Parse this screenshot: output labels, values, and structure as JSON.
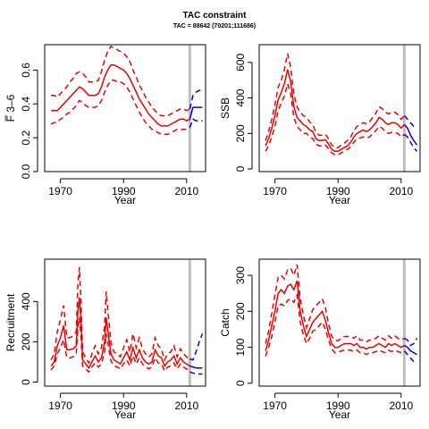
{
  "title": "TAC constraint",
  "subtitle": "TAC = 88642 (70201;111686)",
  "colors": {
    "history": "#ee0000",
    "projection": "#0000ee",
    "marker": "#bebebe"
  },
  "chart_data": [
    {
      "type": "line",
      "panel": "F",
      "ylabel": "F̅ 3–6",
      "xlabel": "Year",
      "xlim": [
        1965,
        2016
      ],
      "ylim": [
        0,
        0.75
      ],
      "yticks": [
        0,
        0.2,
        0.4,
        0.6
      ],
      "ytick_labels": [
        "0.0",
        "0.2",
        "0.4",
        "0.6"
      ],
      "xticks": [
        1970,
        1990,
        2010
      ],
      "marker_x": 2011,
      "history": {
        "x": [
          1967,
          1968,
          1969,
          1970,
          1971,
          1972,
          1973,
          1974,
          1975,
          1976,
          1977,
          1978,
          1979,
          1980,
          1981,
          1982,
          1983,
          1984,
          1985,
          1986,
          1987,
          1988,
          1989,
          1990,
          1991,
          1992,
          1993,
          1994,
          1995,
          1996,
          1997,
          1998,
          1999,
          2000,
          2001,
          2002,
          2003,
          2004,
          2005,
          2006,
          2007,
          2008,
          2009,
          2010,
          2011
        ],
        "mid": [
          0.36,
          0.36,
          0.36,
          0.38,
          0.4,
          0.42,
          0.44,
          0.46,
          0.48,
          0.5,
          0.49,
          0.47,
          0.45,
          0.45,
          0.45,
          0.46,
          0.5,
          0.56,
          0.6,
          0.63,
          0.63,
          0.62,
          0.61,
          0.6,
          0.58,
          0.55,
          0.51,
          0.47,
          0.43,
          0.4,
          0.37,
          0.34,
          0.32,
          0.3,
          0.28,
          0.27,
          0.27,
          0.27,
          0.28,
          0.29,
          0.3,
          0.31,
          0.31,
          0.3,
          0.31
        ],
        "lo": [
          0.28,
          0.29,
          0.29,
          0.31,
          0.32,
          0.34,
          0.35,
          0.37,
          0.39,
          0.42,
          0.41,
          0.39,
          0.38,
          0.38,
          0.38,
          0.39,
          0.42,
          0.47,
          0.51,
          0.54,
          0.54,
          0.53,
          0.53,
          0.52,
          0.5,
          0.47,
          0.43,
          0.39,
          0.35,
          0.32,
          0.29,
          0.27,
          0.25,
          0.24,
          0.23,
          0.22,
          0.22,
          0.22,
          0.23,
          0.24,
          0.25,
          0.25,
          0.25,
          0.25,
          0.26
        ],
        "hi": [
          0.45,
          0.45,
          0.44,
          0.46,
          0.48,
          0.5,
          0.53,
          0.55,
          0.58,
          0.59,
          0.58,
          0.56,
          0.53,
          0.53,
          0.53,
          0.54,
          0.59,
          0.66,
          0.71,
          0.74,
          0.73,
          0.72,
          0.71,
          0.7,
          0.68,
          0.65,
          0.6,
          0.56,
          0.51,
          0.48,
          0.44,
          0.41,
          0.38,
          0.36,
          0.34,
          0.33,
          0.33,
          0.33,
          0.34,
          0.35,
          0.36,
          0.37,
          0.37,
          0.36,
          0.37
        ]
      },
      "projection": {
        "x": [
          2011,
          2012,
          2013,
          2014,
          2015
        ],
        "mid": [
          0.31,
          0.38,
          0.38,
          0.38,
          0.38
        ],
        "lo": [
          0.26,
          0.31,
          0.3,
          0.3,
          0.3
        ],
        "hi": [
          0.37,
          0.45,
          0.47,
          0.48,
          0.48
        ]
      }
    },
    {
      "type": "line",
      "panel": "SSB",
      "ylabel": "SSB",
      "xlabel": "Year",
      "xlim": [
        1965,
        2016
      ],
      "ylim": [
        -15,
        700
      ],
      "yticks": [
        0,
        200,
        400,
        600
      ],
      "ytick_labels": [
        "0",
        "200",
        "400",
        "600"
      ],
      "xticks": [
        1970,
        1990,
        2010
      ],
      "marker_x": 2011,
      "history": {
        "x": [
          1967,
          1968,
          1969,
          1970,
          1971,
          1972,
          1973,
          1974,
          1975,
          1976,
          1977,
          1978,
          1979,
          1980,
          1981,
          1982,
          1983,
          1984,
          1985,
          1986,
          1987,
          1988,
          1989,
          1990,
          1991,
          1992,
          1993,
          1994,
          1995,
          1996,
          1997,
          1998,
          1999,
          2000,
          2001,
          2002,
          2003,
          2004,
          2005,
          2006,
          2007,
          2008,
          2009,
          2010,
          2011
        ],
        "mid": [
          130,
          170,
          230,
          300,
          390,
          430,
          480,
          560,
          490,
          350,
          290,
          270,
          250,
          240,
          220,
          210,
          170,
          160,
          160,
          165,
          140,
          110,
          100,
          100,
          110,
          120,
          130,
          150,
          180,
          200,
          210,
          220,
          210,
          220,
          240,
          260,
          290,
          280,
          260,
          250,
          260,
          260,
          250,
          230,
          250
        ],
        "lo": [
          100,
          130,
          180,
          240,
          330,
          370,
          410,
          480,
          420,
          290,
          240,
          220,
          200,
          200,
          180,
          170,
          140,
          130,
          130,
          135,
          115,
          90,
          80,
          80,
          90,
          100,
          110,
          125,
          150,
          170,
          175,
          180,
          175,
          180,
          200,
          215,
          240,
          230,
          210,
          200,
          205,
          205,
          200,
          180,
          195
        ],
        "hi": [
          160,
          210,
          280,
          360,
          460,
          500,
          560,
          650,
          570,
          420,
          350,
          320,
          300,
          290,
          265,
          250,
          205,
          190,
          190,
          195,
          170,
          135,
          120,
          120,
          135,
          145,
          160,
          180,
          215,
          240,
          250,
          260,
          255,
          265,
          290,
          315,
          350,
          340,
          320,
          310,
          320,
          320,
          305,
          280,
          300
        ]
      },
      "projection": {
        "x": [
          2011,
          2012,
          2013,
          2014,
          2015
        ],
        "mid": [
          250,
          230,
          190,
          160,
          135
        ],
        "lo": [
          195,
          180,
          150,
          120,
          100
        ],
        "hi": [
          300,
          280,
          260,
          240,
          235
        ]
      }
    },
    {
      "type": "line",
      "panel": "Recruitment",
      "ylabel": "Recruitment",
      "xlabel": "Year",
      "xlim": [
        1965,
        2016
      ],
      "ylim": [
        -20,
        610
      ],
      "yticks": [
        0,
        200,
        400
      ],
      "ytick_labels": [
        "0",
        "200",
        "400"
      ],
      "xticks": [
        1970,
        1990,
        2010
      ],
      "marker_x": 2011,
      "history": {
        "x": [
          1967,
          1968,
          1969,
          1970,
          1971,
          1972,
          1973,
          1974,
          1975,
          1975.5,
          1976,
          1976.5,
          1977,
          1978,
          1979,
          1980,
          1981,
          1982,
          1983,
          1984,
          1984.5,
          1985,
          1985.5,
          1986,
          1987,
          1988,
          1989,
          1990,
          1991,
          1992,
          1993,
          1994,
          1995,
          1996,
          1997,
          1998,
          1999,
          2000,
          2001,
          2002,
          2003,
          2004,
          2005,
          2006,
          2007,
          2008,
          2009,
          2010,
          2011
        ],
        "mid": [
          80,
          100,
          180,
          220,
          280,
          160,
          160,
          165,
          180,
          350,
          420,
          300,
          110,
          90,
          70,
          100,
          130,
          100,
          120,
          200,
          320,
          260,
          200,
          140,
          110,
          100,
          90,
          120,
          150,
          110,
          170,
          120,
          160,
          120,
          100,
          90,
          100,
          160,
          130,
          120,
          80,
          100,
          110,
          130,
          90,
          120,
          100,
          90,
          80
        ],
        "lo": [
          60,
          80,
          140,
          170,
          210,
          120,
          120,
          125,
          140,
          260,
          320,
          230,
          80,
          65,
          50,
          75,
          95,
          75,
          90,
          150,
          240,
          200,
          150,
          105,
          80,
          75,
          65,
          90,
          110,
          80,
          130,
          90,
          120,
          90,
          75,
          65,
          75,
          120,
          95,
          90,
          55,
          75,
          80,
          95,
          65,
          90,
          75,
          65,
          60
        ],
        "hi": [
          110,
          140,
          250,
          310,
          380,
          220,
          220,
          230,
          250,
          480,
          570,
          400,
          150,
          120,
          95,
          140,
          180,
          140,
          170,
          280,
          450,
          360,
          280,
          195,
          150,
          140,
          125,
          170,
          210,
          150,
          240,
          170,
          220,
          165,
          140,
          125,
          140,
          220,
          180,
          165,
          110,
          140,
          150,
          180,
          125,
          165,
          140,
          125,
          110
        ]
      },
      "projection": {
        "x": [
          2011,
          2012,
          2013,
          2014,
          2015
        ],
        "mid": [
          80,
          75,
          70,
          70,
          70
        ],
        "lo": [
          50,
          45,
          40,
          40,
          40
        ],
        "hi": [
          115,
          110,
          150,
          200,
          240
        ]
      }
    },
    {
      "type": "line",
      "panel": "Catch",
      "ylabel": "Catch",
      "xlabel": "Year",
      "xlim": [
        1965,
        2016
      ],
      "ylim": [
        -8,
        345
      ],
      "yticks": [
        0,
        100,
        200,
        300
      ],
      "ytick_labels": [
        "0",
        "100",
        "200",
        "300"
      ],
      "xticks": [
        1970,
        1990,
        2010
      ],
      "marker_x": 2011,
      "history": {
        "x": [
          1967,
          1968,
          1969,
          1970,
          1971,
          1972,
          1973,
          1974,
          1975,
          1976,
          1977,
          1978,
          1979,
          1980,
          1981,
          1982,
          1983,
          1984,
          1985,
          1986,
          1987,
          1988,
          1989,
          1990,
          1991,
          1992,
          1993,
          1994,
          1995,
          1996,
          1997,
          1998,
          1999,
          2000,
          2001,
          2002,
          2003,
          2004,
          2005,
          2006,
          2007,
          2008,
          2009,
          2010,
          2011
        ],
        "mid": [
          90,
          120,
          160,
          200,
          250,
          260,
          250,
          270,
          275,
          260,
          285,
          200,
          160,
          130,
          150,
          170,
          180,
          190,
          200,
          175,
          140,
          110,
          100,
          100,
          105,
          110,
          110,
          110,
          105,
          110,
          100,
          100,
          95,
          100,
          100,
          105,
          110,
          105,
          100,
          110,
          105,
          110,
          105,
          100,
          105
        ],
        "lo": [
          75,
          100,
          130,
          170,
          215,
          220,
          215,
          230,
          235,
          225,
          245,
          170,
          135,
          110,
          125,
          145,
          150,
          160,
          170,
          150,
          120,
          95,
          85,
          85,
          90,
          92,
          92,
          92,
          88,
          92,
          85,
          85,
          80,
          85,
          85,
          88,
          92,
          88,
          85,
          92,
          88,
          92,
          88,
          85,
          90
        ],
        "hi": [
          110,
          145,
          195,
          245,
          295,
          300,
          290,
          315,
          320,
          300,
          330,
          235,
          190,
          155,
          180,
          205,
          215,
          225,
          235,
          210,
          165,
          130,
          120,
          118,
          125,
          130,
          130,
          130,
          125,
          132,
          120,
          120,
          115,
          120,
          120,
          125,
          132,
          125,
          120,
          132,
          125,
          132,
          125,
          120,
          125
        ]
      },
      "projection": {
        "x": [
          2011,
          2012,
          2013,
          2014,
          2015
        ],
        "mid": [
          105,
          100,
          90,
          85,
          80
        ],
        "lo": [
          90,
          80,
          70,
          60,
          55
        ],
        "hi": [
          125,
          120,
          105,
          110,
          125
        ]
      }
    }
  ]
}
